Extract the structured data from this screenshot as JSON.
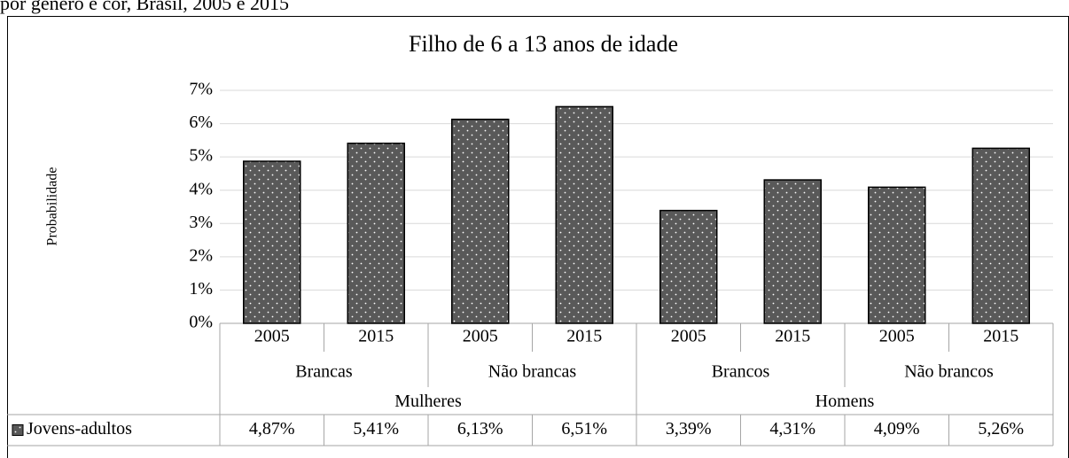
{
  "caption": "por gênero e cor, Brasil, 2005 e 2015",
  "chart_data": {
    "type": "bar",
    "title": "Filho de 6 a 13 anos de idade",
    "y_label": "Probabilidade",
    "categories": [
      "2005",
      "2015",
      "2005",
      "2015",
      "2005",
      "2015",
      "2005",
      "2015"
    ],
    "subgroups": [
      "Brancas",
      "Não brancas",
      "Brancos",
      "Não brancos"
    ],
    "groups": [
      "Mulheres",
      "Homens"
    ],
    "series": [
      {
        "name": "Jovens-adultos",
        "color": "#595959",
        "values": [
          4.87,
          5.41,
          6.13,
          6.51,
          3.39,
          4.31,
          4.09,
          5.26
        ],
        "value_labels": [
          "4,87%",
          "5,41%",
          "6,13%",
          "6,51%",
          "3,39%",
          "4,31%",
          "4,09%",
          "5,26%"
        ]
      }
    ],
    "ylim": [
      0,
      7
    ],
    "yticks": [
      {
        "value": 0,
        "label": "0%"
      },
      {
        "value": 1,
        "label": "1%"
      },
      {
        "value": 2,
        "label": "2%"
      },
      {
        "value": 3,
        "label": "3%"
      },
      {
        "value": 4,
        "label": "4%"
      },
      {
        "value": 5,
        "label": "5%"
      },
      {
        "value": 6,
        "label": "6%"
      },
      {
        "value": 7,
        "label": "7%"
      }
    ],
    "grid": true
  }
}
